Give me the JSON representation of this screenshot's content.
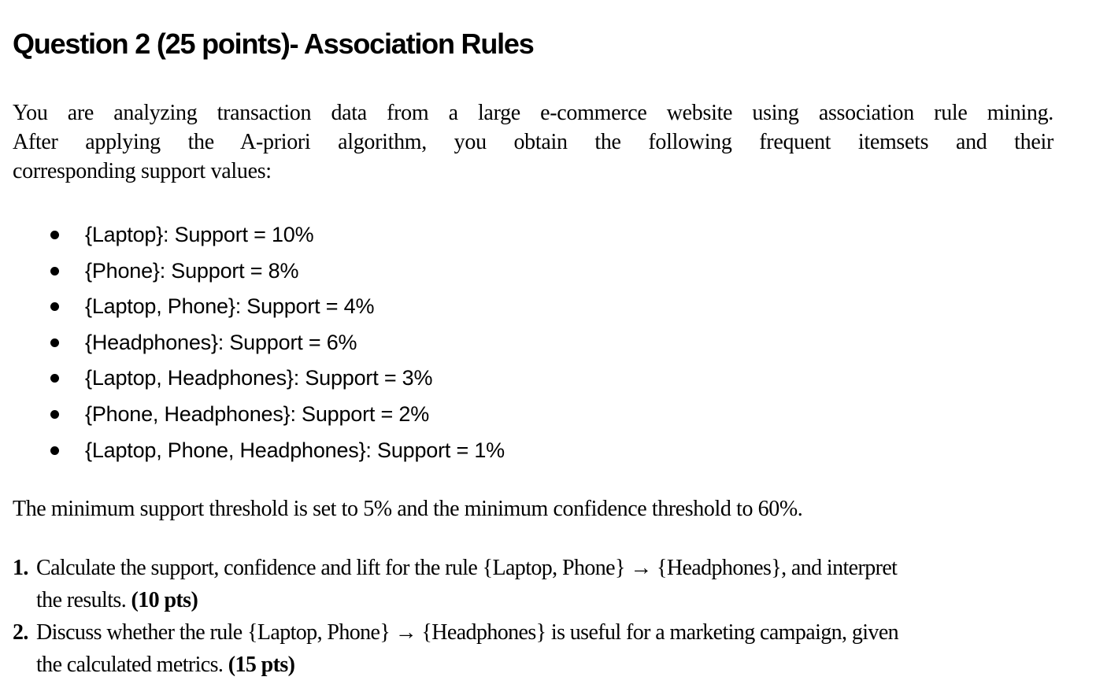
{
  "colors": {
    "text": "#000000",
    "background": "#ffffff"
  },
  "document": {
    "title": "Question 2 (25 points)- Association Rules",
    "intro": {
      "line1": "You are analyzing transaction data from a large e-commerce website using association rule mining.",
      "line2": "After applying the A-priori algorithm, you obtain the following frequent itemsets and their",
      "line3": "corresponding support values:"
    },
    "itemsets": [
      {
        "text": "{Laptop}: Support = 10%"
      },
      {
        "text": "{Phone}: Support = 8%"
      },
      {
        "text": "{Laptop, Phone}: Support = 4%"
      },
      {
        "text": "{Headphones}: Support = 6%"
      },
      {
        "text": "{Laptop, Headphones}: Support = 3%"
      },
      {
        "text": "{Phone, Headphones}: Support = 2%"
      },
      {
        "text": "{Laptop, Phone, Headphones}: Support = 1%"
      }
    ],
    "thresholds": "The minimum support threshold is set to 5% and the minimum confidence threshold to 60%.",
    "questions": [
      {
        "number": "1.",
        "line1": "Calculate the support, confidence and lift for the rule {Laptop, Phone} → {Headphones}, and interpret",
        "line2": "the results.",
        "points": "(10 pts)"
      },
      {
        "number": "2.",
        "line1": "Discuss whether the rule {Laptop, Phone} → {Headphones} is useful for a marketing campaign, given",
        "line2": "the calculated metrics.",
        "points": "(15 pts)"
      }
    ]
  }
}
